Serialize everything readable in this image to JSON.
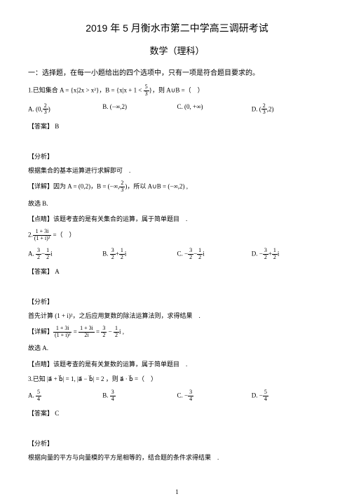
{
  "title": "2019 年 5 月衡水市第二中学高三调研考试",
  "subtitle": "数学（理科）",
  "section1": "一：选择题，在每一小题给出的四个选项中，只有一项是符合题目要求的。",
  "q1": {
    "stem_pre": "1.已知集合 A = {x|2x > x²}，B = {x|x + 1 < ",
    "stem_post": "}，则 A∪B =（　）",
    "frac_num": "5",
    "frac_den": "3",
    "optA_pre": "A. ",
    "optA_l": "(0,",
    "optA_num": "2",
    "optA_den": "3",
    "optA_r": ")",
    "optB": "B. (−∞,2)",
    "optC": "C. (0, +∞)",
    "optD_pre": "D. ",
    "optD_l": "(",
    "optD_num": "2",
    "optD_den": "3",
    "optD_r": ",2)",
    "answer": "【答案】 B",
    "analysis": "【分析】",
    "analysis_text": "根据集合的基本运算进行求解即可　.",
    "detail_pre": "【详解】因为 A = (0,2)，B = ",
    "detail_l": "(−∞,",
    "detail_num": "2",
    "detail_den": "3",
    "detail_r": ")",
    "detail_post": "，所以 A∪B = (−∞,2) ,",
    "conclusion": "故选 B.",
    "point": "【点睛】该题考查的是有关集合的运算，属于简单题目　."
  },
  "q2": {
    "stem_pre": "2.",
    "num_top": "1 + 3i",
    "num_bot": "(1 + i)²",
    "stem_post": " =（　）",
    "optA_pre": "A. ",
    "optA_n1": "3",
    "optA_d1": "2",
    "optA_mid": "−",
    "optA_n2": "1",
    "optA_d2": "2",
    "optA_suf": "i",
    "optB_pre": "B. ",
    "optB_n1": "3",
    "optB_d1": "2",
    "optB_mid": "+",
    "optB_n2": "1",
    "optB_d2": "2",
    "optB_suf": "i",
    "optC_pre": "C. −",
    "optC_n1": "3",
    "optC_d1": "2",
    "optC_mid": "−",
    "optC_n2": "1",
    "optC_d2": "2",
    "optC_suf": "i",
    "optD_pre": "D. −",
    "optD_n1": "3",
    "optD_d1": "2",
    "optD_mid": "+",
    "optD_n2": "1",
    "optD_d2": "2",
    "optD_suf": "i",
    "answer": "【答案】 A",
    "analysis": "【分析】",
    "analysis_text": "首先计算 (1 + i)²，之后应用复数的除法运算法则，求得结果　.",
    "detail_pre": "【详解】",
    "detail_f1n": "1 + 3i",
    "detail_f1d": "(1 + i)²",
    "detail_eq1": " = ",
    "detail_f2n": "1 + 3i",
    "detail_f2d": "2i",
    "detail_eq2": " = ",
    "detail_f3n": "3",
    "detail_f3d": "2",
    "detail_mid": " − ",
    "detail_f4n": "1",
    "detail_f4d": "2",
    "detail_post": "i ,",
    "conclusion": "故选 A.",
    "point": "【点睛】该题考查的是有关复数的运算，属于简单题目　."
  },
  "q3": {
    "stem": "3.已知 |a⃗ + b⃗| = 1, |a⃗ − b⃗| = 2 ，则 a⃗ · b⃗ =（　）",
    "optA_pre": "A. ",
    "optA_n": "5",
    "optA_d": "4",
    "optB_pre": "B. ",
    "optB_n": "3",
    "optB_d": "4",
    "optC_pre": "C. −",
    "optC_n": "3",
    "optC_d": "4",
    "optD_pre": "D. −",
    "optD_n": "5",
    "optD_d": "4",
    "answer": "【答案】 C",
    "analysis": "【分析】",
    "analysis_text": "根据向量的平方与向量模的平方是相等的，结合题的条件求得结果　."
  },
  "page": "1"
}
